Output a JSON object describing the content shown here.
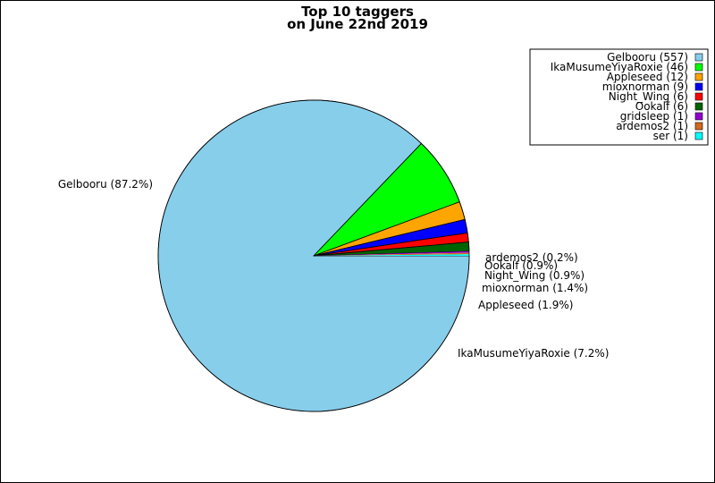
{
  "chart_data": {
    "type": "pie",
    "title_lines": [
      "Top 10 taggers",
      "on June 22nd 2019"
    ],
    "slices": [
      {
        "name": "Gelbooru",
        "count": 557,
        "percent": "87.2%",
        "color": "#87ceeb",
        "edge": "#000000"
      },
      {
        "name": "IkaMusumeYiyaRoxie",
        "count": 46,
        "percent": "7.2%",
        "color": "#00ff00",
        "edge": "#000000"
      },
      {
        "name": "Appleseed",
        "count": 12,
        "percent": "1.9%",
        "color": "#ffa500",
        "edge": "#000000"
      },
      {
        "name": "mioxnorman",
        "count": 9,
        "percent": "1.4%",
        "color": "#0000ff",
        "edge": "#000000"
      },
      {
        "name": "Night_Wing",
        "count": 6,
        "percent": "0.9%",
        "color": "#ff0000",
        "edge": "#000000"
      },
      {
        "name": "Ookalf",
        "count": 6,
        "percent": "0.9%",
        "color": "#006400",
        "edge": "#000000"
      },
      {
        "name": "gridsleep",
        "count": 1,
        "percent": "",
        "color": "#9400d3",
        "edge": "none"
      },
      {
        "name": "ardemos2",
        "count": 1,
        "percent": "0.2%",
        "color": "#d2691e",
        "edge": "none"
      },
      {
        "name": "ser",
        "count": 1,
        "percent": "",
        "color": "#00ffff",
        "edge": "none"
      }
    ],
    "legend_location": "top-right"
  }
}
